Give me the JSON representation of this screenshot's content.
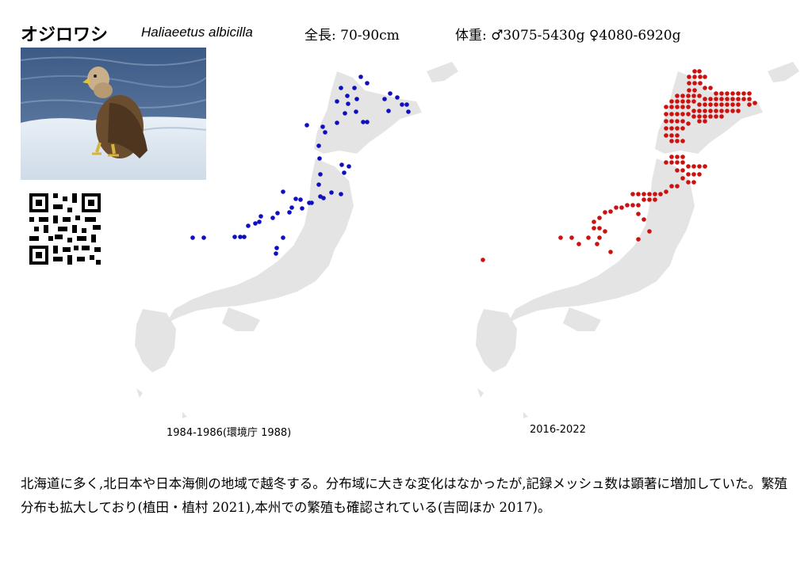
{
  "header": {
    "name_ja": "オジロワシ",
    "name_scientific": "Haliaeetus albicilla",
    "length": "全長: 70-90cm",
    "weight": "体重: ♂3075-5430g ♀4080-6920g"
  },
  "photo": {
    "subject": "white-tailed-eagle"
  },
  "qr": {
    "icon": "qr-code-icon"
  },
  "maps": [
    {
      "caption": "1984-1986(環境庁 1988)",
      "dot_color": "#0f0fc0"
    },
    {
      "caption": "2016-2022",
      "dot_color": "#cc1111"
    }
  ],
  "description": "北海道に多く,北日本や日本海側の地域で越冬する。分布域に大きな変化はなかったが,記録メッシュ数は顕著に増加していた。繁殖分布も拡大しており(植田・植村 2021),本州での繁殖も確認されている(吉岡ほか 2017)。",
  "colors": {
    "land": "#e4e4e4"
  }
}
